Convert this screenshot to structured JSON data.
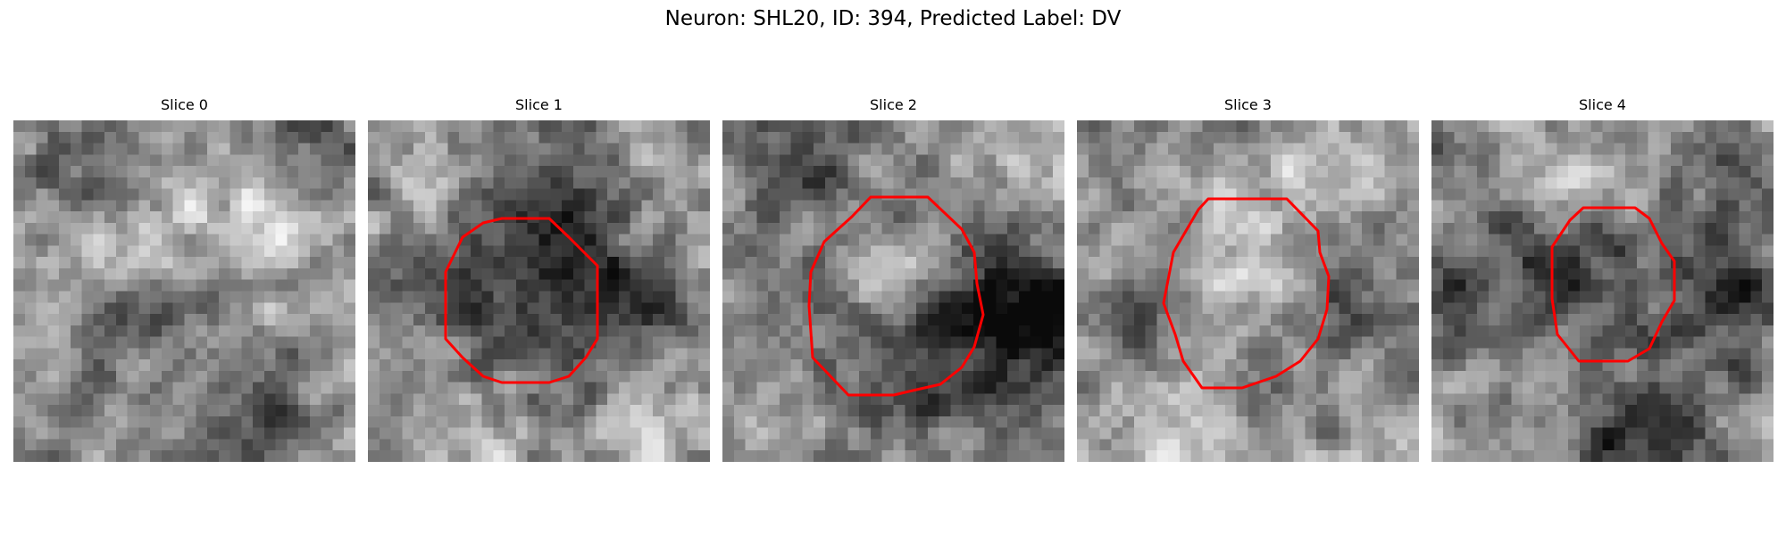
{
  "figure": {
    "title": "Neuron: SHL20, ID: 394, Predicted Label: DV"
  },
  "colors": {
    "contour": "#ff0000",
    "background": "#ffffff"
  },
  "panels": [
    {
      "title": "Slice 0",
      "has_contour": false
    },
    {
      "title": "Slice 1",
      "has_contour": true
    },
    {
      "title": "Slice 2",
      "has_contour": true
    },
    {
      "title": "Slice 3",
      "has_contour": true
    },
    {
      "title": "Slice 4",
      "has_contour": true
    }
  ]
}
